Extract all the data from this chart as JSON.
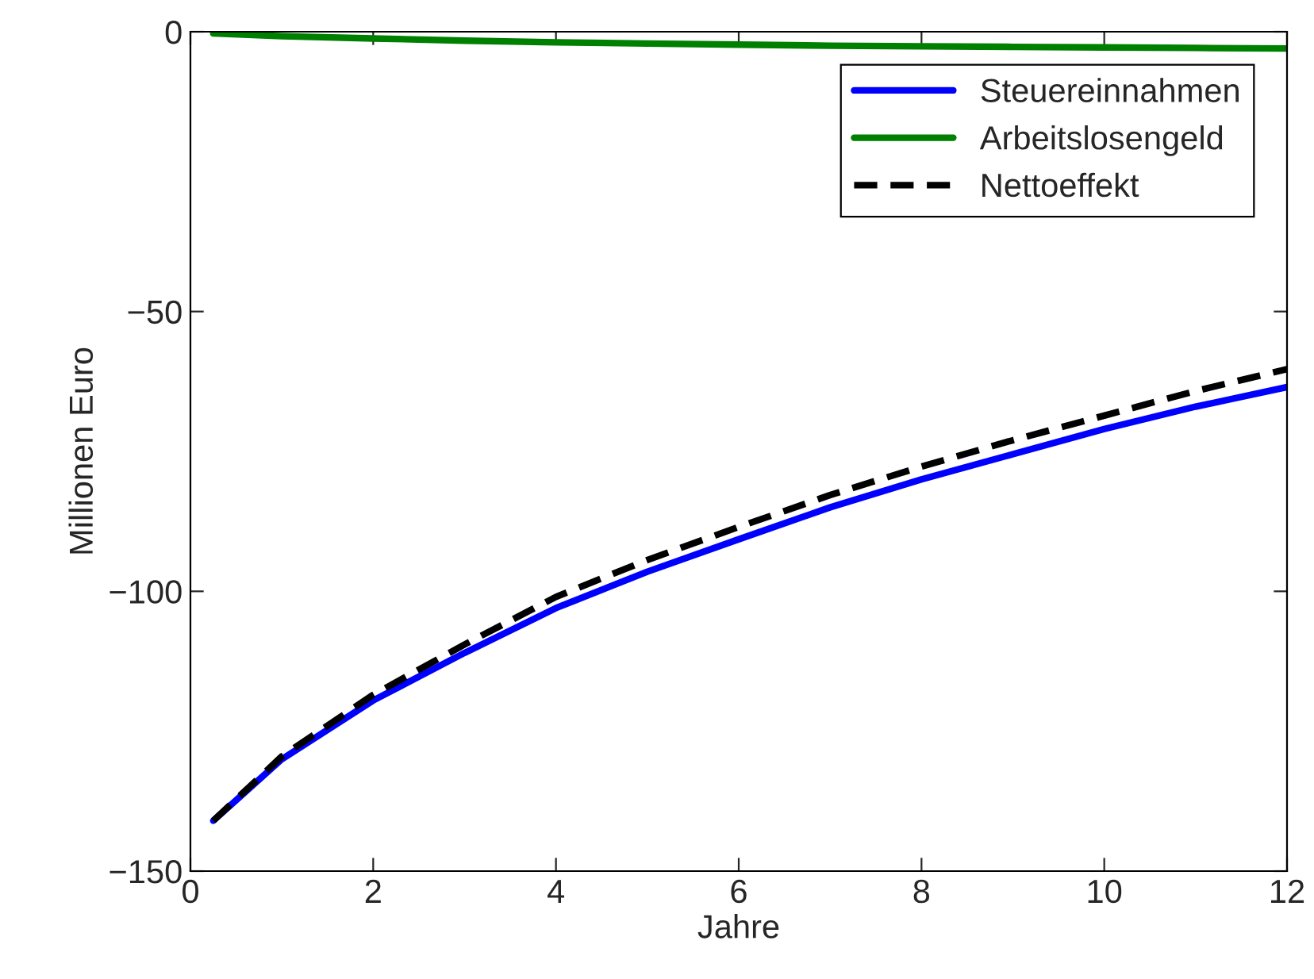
{
  "chart_data": {
    "type": "line",
    "xlabel": "Jahre",
    "ylabel": "Millionen Euro",
    "xlim": [
      0,
      12
    ],
    "ylim": [
      -150,
      0
    ],
    "xticks": [
      0,
      2,
      4,
      6,
      8,
      10,
      12
    ],
    "yticks": [
      {
        "value": -150,
        "label": "−150"
      },
      {
        "value": -100,
        "label": "−100"
      },
      {
        "value": -50,
        "label": "−50"
      },
      0
    ],
    "grid": false,
    "legend": "top right",
    "series": [
      {
        "name": "Steuereinnahmen",
        "color": "#0000ff",
        "line_style": "solid",
        "x": [
          0.25,
          1,
          2,
          3,
          4,
          5,
          6,
          7,
          8,
          9,
          10,
          11,
          12
        ],
        "values": [
          -141,
          -130,
          -119.5,
          -111,
          -103,
          -96.5,
          -90.7,
          -85,
          -80,
          -75.5,
          -71,
          -67,
          -63.5
        ]
      },
      {
        "name": "Arbeitslosengeld",
        "color": "#008000",
        "line_style": "solid",
        "x": [
          0.25,
          1,
          2,
          3,
          4,
          5,
          6,
          7,
          8,
          9,
          10,
          11,
          12
        ],
        "values": [
          -0.3,
          -0.8,
          -1.2,
          -1.6,
          -1.9,
          -2.1,
          -2.3,
          -2.5,
          -2.6,
          -2.7,
          -2.8,
          -2.9,
          -3
        ]
      },
      {
        "name": "Nettoeffekt",
        "color": "#000000",
        "line_style": "dashed",
        "x": [
          0.25,
          1,
          2,
          3,
          4,
          5,
          6,
          7,
          8,
          9,
          10,
          11,
          12
        ],
        "values": [
          -141,
          -129.5,
          -118.5,
          -109.5,
          -101,
          -94.4,
          -88.5,
          -82.8,
          -77.7,
          -73,
          -68.6,
          -64.2,
          -60.3
        ]
      }
    ]
  }
}
